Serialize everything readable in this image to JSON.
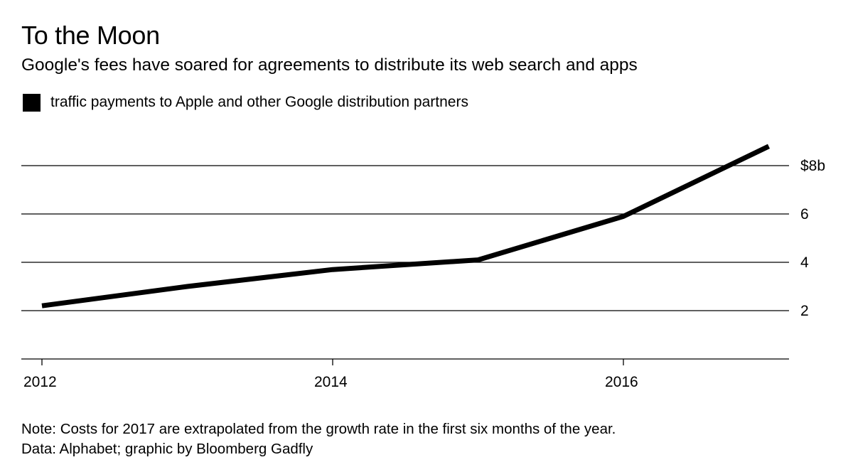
{
  "chart_data": {
    "type": "line",
    "title": "To the Moon",
    "subtitle": "Google's fees have soared for agreements to distribute its web search and apps",
    "legend": [
      {
        "label": "traffic payments to Apple and other Google distribution partners",
        "color": "#000000"
      }
    ],
    "legend_position": "top-left",
    "xlabel": "",
    "ylabel": "",
    "x": [
      2012,
      2013,
      2014,
      2015,
      2016,
      2017
    ],
    "series": [
      {
        "name": "traffic payments to Apple and other Google distribution partners",
        "values": [
          2.2,
          3.0,
          3.7,
          4.1,
          5.9,
          8.8
        ],
        "color": "#000000"
      }
    ],
    "xlim": [
      2011.93,
      2017.25
    ],
    "ylim": [
      0,
      9.5
    ],
    "x_ticks": [
      {
        "value": 2012,
        "label": "2012"
      },
      {
        "value": 2014,
        "label": "2014"
      },
      {
        "value": 2016,
        "label": "2016"
      }
    ],
    "y_ticks": [
      {
        "value": 2,
        "label": "2"
      },
      {
        "value": 4,
        "label": "4"
      },
      {
        "value": 6,
        "label": "6"
      },
      {
        "value": 8,
        "label": "$8b"
      }
    ],
    "y_axis_side": "right",
    "grid": true,
    "note": "Note: Costs for 2017 are extrapolated from the growth rate in the first six months of the year.",
    "source": "Data: Alphabet; graphic by Bloomberg Gadfly"
  }
}
